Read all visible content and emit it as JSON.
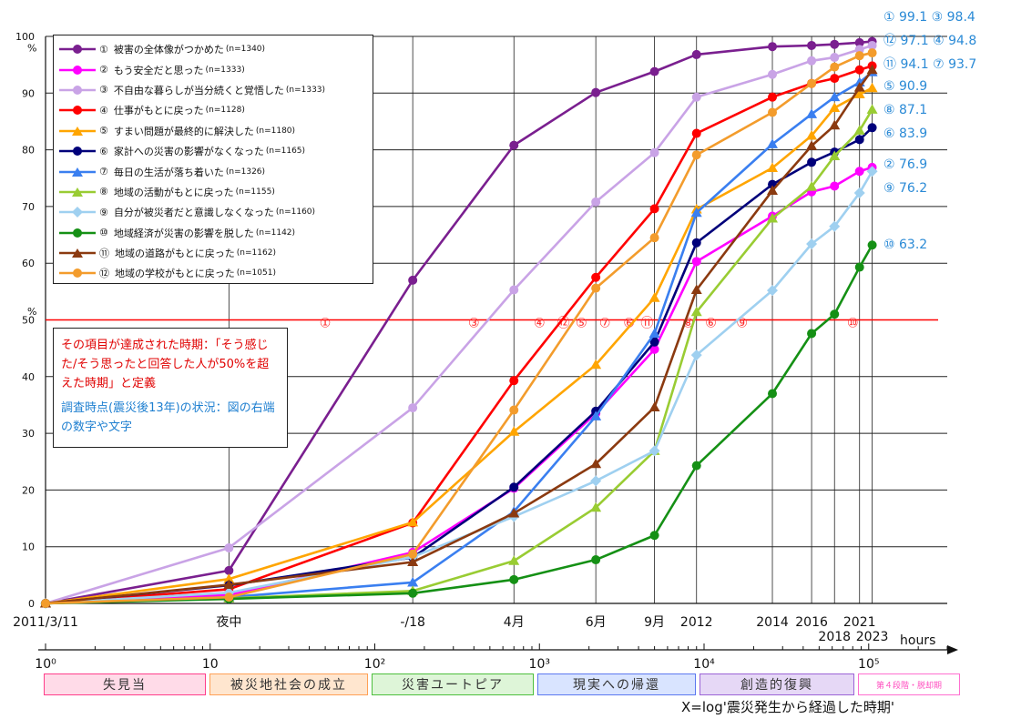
{
  "legend": [
    {
      "mark": "①",
      "label": "被害の全体像がつかめた",
      "n": "(n=1340)"
    },
    {
      "mark": "②",
      "label": "もう安全だと思った",
      "n": "(n=1333)"
    },
    {
      "mark": "③",
      "label": "不自由な暮らしが当分続くと覚悟した",
      "n": "(n=1333)"
    },
    {
      "mark": "④",
      "label": "仕事がもとに戻った",
      "n": "(n=1128)"
    },
    {
      "mark": "⑤",
      "label": "すまい問題が最終的に解決した",
      "n": "(n=1180)"
    },
    {
      "mark": "⑥",
      "label": "家計への災害の影響がなくなった",
      "n": "(n=1165)"
    },
    {
      "mark": "⑦",
      "label": "毎日の生活が落ち着いた",
      "n": "(n=1326)"
    },
    {
      "mark": "⑧",
      "label": "地域の活動がもとに戻った",
      "n": "(n=1155)"
    },
    {
      "mark": "⑨",
      "label": "自分が被災者だと意識しなくなった",
      "n": "(n=1160)"
    },
    {
      "mark": "⑩",
      "label": "地域経済が災害の影響を脱した",
      "n": "(n=1142)"
    },
    {
      "mark": "⑪",
      "label": "地域の道路がもとに戻った",
      "n": "(n=1162)"
    },
    {
      "mark": "⑫",
      "label": "地域の学校がもとに戻った",
      "n": "(n=1051)"
    }
  ],
  "definition": {
    "red": "その項目が達成された時期：「そう感じた/そう思ったと回答した人が50%を超えた時期」と定義",
    "blue": "調査時点(震災後13年)の状況：図の右端の数字や文字"
  },
  "phases": [
    "失見当",
    "被災地社会の成立",
    "災害ユートピア",
    "現実への帰還",
    "創造的復興",
    "第４段階・脱却期"
  ],
  "x_title": "X=log'震災発生から経過した時期'",
  "hours_label": "hours",
  "end_labels": [
    {
      "text": "① 99.1  ③ 98.4",
      "color": "#2a8ad6"
    },
    {
      "text": "⑫ 97.1  ④ 94.8",
      "color": "#2a8ad6"
    },
    {
      "text": "⑪ 94.1  ⑦ 93.7",
      "color": "#2a8ad6"
    },
    {
      "text": "⑤ 90.9",
      "color": "#2a8ad6"
    },
    {
      "text": "⑧ 87.1",
      "color": "#2a8ad6"
    },
    {
      "text": "⑥ 83.9",
      "color": "#2a8ad6"
    },
    {
      "text": "② 76.9",
      "color": "#2a8ad6"
    },
    {
      "text": "⑨ 76.2",
      "color": "#2a8ad6"
    },
    {
      "text": "⑩ 63.2",
      "color": "#2a8ad6"
    }
  ],
  "chart_data": {
    "type": "line",
    "x_scale": "log",
    "x_unit": "hours",
    "xlim": [
      1,
      300000
    ],
    "ylim": [
      0,
      100
    ],
    "y_unit": "%",
    "threshold": 50,
    "yticks": [
      0,
      10,
      20,
      30,
      40,
      50,
      60,
      70,
      80,
      90,
      100
    ],
    "x_event_labels": [
      {
        "label": "2011/3/11",
        "x": 1
      },
      {
        "label": "夜中",
        "x": 13
      },
      {
        "label": "-/18",
        "x": 170
      },
      {
        "label": "4月",
        "x": 700
      },
      {
        "label": "6月",
        "x": 2200
      },
      {
        "label": "9月",
        "x": 5000
      },
      {
        "label": "2012",
        "x": 9000
      },
      {
        "label": "2014",
        "x": 26000
      },
      {
        "label": "2016",
        "x": 45000
      },
      {
        "label": "2018",
        "x": 62000
      },
      {
        "label": "2021",
        "x": 88000
      },
      {
        "label": "2023",
        "x": 105000
      }
    ],
    "x_log_ticks": [
      {
        "label": "10⁰",
        "x": 1
      },
      {
        "label": "10",
        "x": 10
      },
      {
        "label": "10²",
        "x": 100
      },
      {
        "label": "10³",
        "x": 1000
      },
      {
        "label": "10⁴",
        "x": 10000
      },
      {
        "label": "10⁵",
        "x": 100000
      }
    ],
    "threshold_marks": [
      {
        "label": "①",
        "x": 50
      },
      {
        "label": "③",
        "x": 400
      },
      {
        "label": "④",
        "x": 1000
      },
      {
        "label": "⑫",
        "x": 1400
      },
      {
        "label": "⑤",
        "x": 1800
      },
      {
        "label": "⑦",
        "x": 2500
      },
      {
        "label": "⑥",
        "x": 3500
      },
      {
        "label": "⑪",
        "x": 4500
      },
      {
        "label": "⑧",
        "x": 8000
      },
      {
        "label": "⑥",
        "x": 11000
      },
      {
        "label": "⑨",
        "x": 17000
      },
      {
        "label": "⑩",
        "x": 80000
      }
    ],
    "series": [
      {
        "name": "①",
        "color": "#7a1f8f",
        "marker": "circle",
        "x": [
          1,
          13,
          170,
          700,
          2200,
          5000,
          9000,
          26000,
          45000,
          62000,
          88000,
          105000
        ],
        "y": [
          0,
          5.8,
          57,
          80.8,
          90.1,
          93.8,
          96.8,
          98.2,
          98.4,
          98.6,
          98.9,
          99.1
        ]
      },
      {
        "name": "②",
        "color": "#ff00ff",
        "marker": "circle",
        "x": [
          1,
          13,
          170,
          700,
          2200,
          5000,
          9000,
          26000,
          45000,
          62000,
          88000,
          105000
        ],
        "y": [
          0,
          1.5,
          9,
          20.3,
          33.5,
          44.8,
          60.3,
          68.3,
          72.6,
          73.6,
          76.2,
          76.9
        ]
      },
      {
        "name": "③",
        "color": "#c9a3e6",
        "marker": "circle",
        "x": [
          1,
          13,
          170,
          700,
          2200,
          5000,
          9000,
          26000,
          45000,
          62000,
          88000,
          105000
        ],
        "y": [
          0,
          9.8,
          34.5,
          55.3,
          70.8,
          79.5,
          89.3,
          93.3,
          95.7,
          96.3,
          97.7,
          98.4
        ]
      },
      {
        "name": "④",
        "color": "#ff0000",
        "marker": "circle",
        "x": [
          1,
          13,
          170,
          700,
          2200,
          5000,
          9000,
          26000,
          45000,
          62000,
          88000,
          105000
        ],
        "y": [
          0,
          2.5,
          14.2,
          39.3,
          57.5,
          69.6,
          82.9,
          89.3,
          91.7,
          92.6,
          94.1,
          94.8
        ]
      },
      {
        "name": "⑤",
        "color": "#ffa500",
        "marker": "triangle",
        "x": [
          1,
          13,
          170,
          700,
          2200,
          5000,
          9000,
          26000,
          45000,
          62000,
          88000,
          105000
        ],
        "y": [
          0,
          4.3,
          14.3,
          30.3,
          42.1,
          53.9,
          69.5,
          76.8,
          82.5,
          87.4,
          89.8,
          90.9
        ]
      },
      {
        "name": "⑥",
        "color": "#00007a",
        "marker": "circle",
        "x": [
          1,
          13,
          170,
          700,
          2200,
          5000,
          9000,
          26000,
          45000,
          62000,
          88000,
          105000
        ],
        "y": [
          0,
          3.2,
          8.1,
          20.5,
          33.9,
          46.1,
          63.6,
          73.9,
          77.8,
          79.6,
          81.8,
          83.9
        ]
      },
      {
        "name": "⑦",
        "color": "#3a7ff0",
        "marker": "triangle",
        "x": [
          1,
          13,
          170,
          700,
          2200,
          5000,
          9000,
          26000,
          45000,
          62000,
          88000,
          105000
        ],
        "y": [
          0,
          1.1,
          3.7,
          16.2,
          33,
          47.6,
          68.9,
          81,
          86.3,
          89.3,
          91.9,
          93.7
        ]
      },
      {
        "name": "⑧",
        "color": "#99cc33",
        "marker": "triangle",
        "x": [
          1,
          13,
          170,
          700,
          2200,
          5000,
          9000,
          26000,
          45000,
          62000,
          88000,
          105000
        ],
        "y": [
          0,
          0.9,
          2.2,
          7.5,
          16.9,
          26.9,
          51.4,
          67.9,
          73.5,
          78.9,
          83.4,
          87.1
        ]
      },
      {
        "name": "⑨",
        "color": "#9fd0f0",
        "marker": "diamond",
        "x": [
          1,
          13,
          170,
          700,
          2200,
          5000,
          9000,
          26000,
          45000,
          62000,
          88000,
          105000
        ],
        "y": [
          0,
          1.9,
          8.2,
          15.3,
          21.6,
          26.9,
          43.8,
          55.2,
          63.4,
          66.5,
          72.4,
          76.2
        ]
      },
      {
        "name": "⑩",
        "color": "#159015",
        "marker": "circle",
        "x": [
          1,
          13,
          170,
          700,
          2200,
          5000,
          9000,
          26000,
          45000,
          62000,
          88000,
          105000
        ],
        "y": [
          0,
          0.8,
          1.8,
          4.2,
          7.7,
          12,
          24.3,
          37,
          47.6,
          51,
          59.3,
          63.2
        ]
      },
      {
        "name": "⑪",
        "color": "#8b3a10",
        "marker": "triangle",
        "x": [
          1,
          13,
          170,
          700,
          2200,
          5000,
          9000,
          26000,
          45000,
          62000,
          88000,
          105000
        ],
        "y": [
          0,
          3.3,
          7.3,
          15.9,
          24.6,
          34.6,
          55.3,
          72.8,
          80.7,
          84.3,
          91,
          94.1
        ]
      },
      {
        "name": "⑫",
        "color": "#f39c2c",
        "marker": "circle",
        "x": [
          1,
          13,
          170,
          700,
          2200,
          5000,
          9000,
          26000,
          45000,
          62000,
          88000,
          105000
        ],
        "y": [
          0,
          1.1,
          8.7,
          34.1,
          55.6,
          64.5,
          79.1,
          86.6,
          91.7,
          94.6,
          96.6,
          97.1
        ]
      }
    ]
  }
}
